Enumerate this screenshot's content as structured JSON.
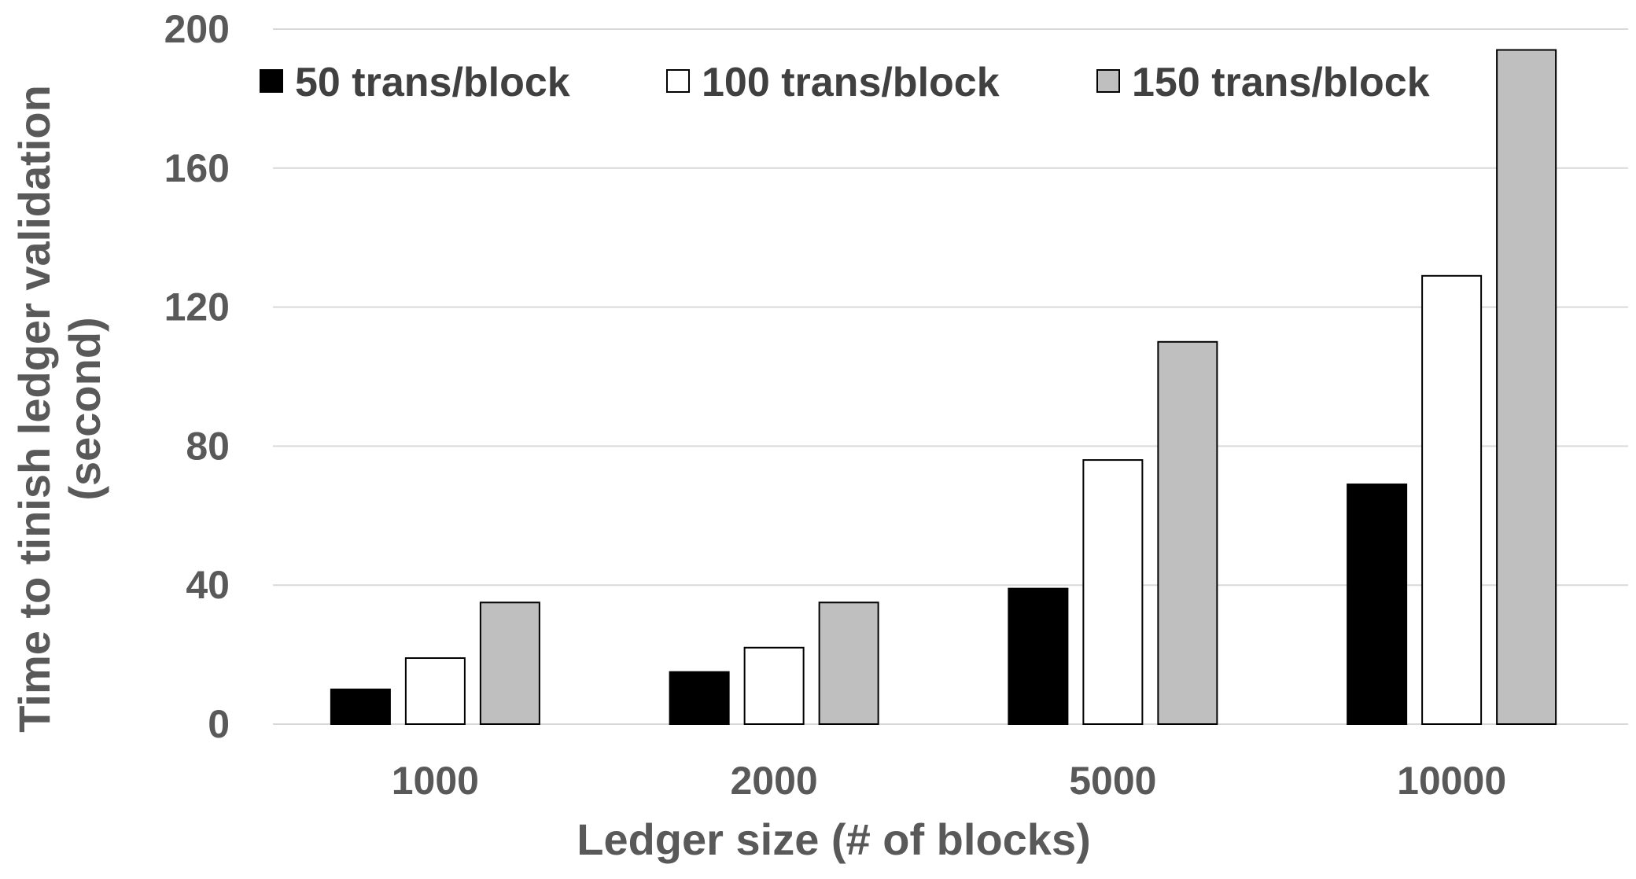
{
  "chart_data": {
    "type": "bar",
    "title": "",
    "xlabel": "Ledger size (# of blocks)",
    "ylabel_lines": [
      "Time to tinish ledger validation",
      "(second)"
    ],
    "categories": [
      "1000",
      "2000",
      "5000",
      "10000"
    ],
    "series": [
      {
        "name": "50 trans/block",
        "color": "#000000",
        "values": [
          10,
          15,
          39,
          69
        ]
      },
      {
        "name": "100 trans/block",
        "color": "#ffffff",
        "values": [
          19,
          22,
          76,
          129
        ]
      },
      {
        "name": "150 trans/block",
        "color": "#bfbfbf",
        "values": [
          35,
          35,
          110,
          194
        ]
      }
    ],
    "ylim": [
      0,
      200
    ],
    "yticks": [
      "0",
      "40",
      "80",
      "120",
      "160",
      "200"
    ],
    "ytick_values": [
      0,
      40,
      80,
      120,
      160,
      200
    ],
    "grid": true,
    "legend_position": "top"
  },
  "colors": {
    "text": "#595959",
    "gridline": "#d9d9d9",
    "bar_outline": "#000000"
  }
}
